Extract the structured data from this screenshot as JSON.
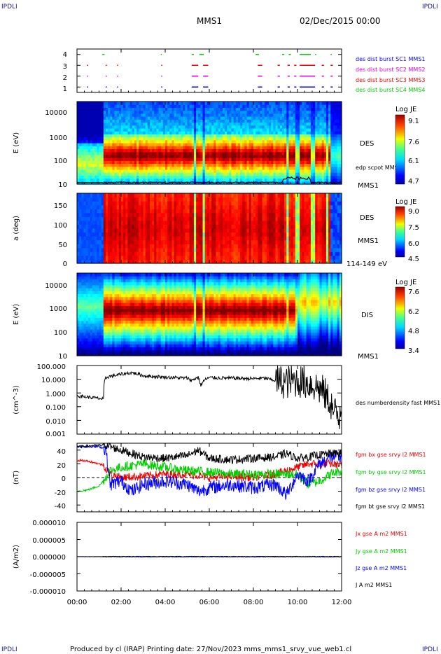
{
  "header": {
    "corner_left_top": "IPDLI",
    "corner_right_top": "IPDLI",
    "corner_left_bottom": "IPDLI",
    "corner_right_bottom": "IPDLI",
    "mission": "MMS1",
    "datetime": "02/Dec/2015 00:00"
  },
  "footer": "Produced by cl (IRAP)   Printing date: 27/Nov/2023   mms_mms1_srvy_vue_web1.cl",
  "x_axis": {
    "range": [
      0,
      12
    ],
    "tick_values": [
      0,
      2,
      4,
      6,
      8,
      10,
      12
    ],
    "tick_labels": [
      "00:00",
      "02:00",
      "04:00",
      "06:00",
      "08:00",
      "10:00",
      "12:00"
    ]
  },
  "colors": {
    "blue": "#0000ff",
    "magenta": "#dd00dd",
    "red": "#ee0000",
    "green": "#00cc00",
    "black": "#000000"
  },
  "chart_data": [
    {
      "type": "scatter",
      "id": "burst",
      "ylabel": "",
      "ylim": [
        0.5,
        4.5
      ],
      "tick_labels": [
        "1",
        "2",
        "3",
        "4"
      ],
      "series": [
        {
          "name": "des dist burst SC1 MMS1",
          "color": "#0000ff",
          "level": 1,
          "intervals": [
            [
              0.45,
              0.5
            ],
            [
              1.3,
              1.35
            ],
            [
              1.82,
              1.86
            ],
            [
              3.82,
              3.86
            ],
            [
              5.2,
              5.5
            ],
            [
              5.72,
              5.95
            ],
            [
              8.2,
              8.4
            ],
            [
              9.1,
              9.2
            ],
            [
              9.55,
              9.65
            ],
            [
              9.85,
              9.95
            ],
            [
              10.1,
              10.8
            ],
            [
              11.1,
              11.2
            ],
            [
              11.5,
              11.6
            ]
          ]
        },
        {
          "name": "des dist burst SC2 MMS2",
          "color": "#dd00dd",
          "level": 2,
          "intervals": [
            [
              0.45,
              0.5
            ],
            [
              1.3,
              1.35
            ],
            [
              1.82,
              1.86
            ],
            [
              3.82,
              3.86
            ],
            [
              5.2,
              5.5
            ],
            [
              5.72,
              5.95
            ],
            [
              8.2,
              8.4
            ],
            [
              9.1,
              9.2
            ],
            [
              9.55,
              9.65
            ],
            [
              9.85,
              9.95
            ],
            [
              10.1,
              10.8
            ],
            [
              11.1,
              11.2
            ],
            [
              11.5,
              11.6
            ]
          ]
        },
        {
          "name": "des dist burst SC3 MMS3",
          "color": "#ee0000",
          "level": 3,
          "intervals": [
            [
              0.45,
              0.5
            ],
            [
              1.3,
              1.35
            ],
            [
              1.82,
              1.86
            ],
            [
              3.82,
              3.86
            ],
            [
              5.2,
              5.5
            ],
            [
              5.72,
              5.95
            ],
            [
              8.2,
              8.4
            ],
            [
              9.1,
              9.2
            ],
            [
              9.55,
              9.65
            ],
            [
              9.85,
              9.95
            ],
            [
              10.1,
              10.8
            ],
            [
              11.1,
              11.2
            ],
            [
              11.5,
              11.6
            ]
          ]
        },
        {
          "name": "des dist burst SC4 MMS4",
          "color": "#00cc00",
          "level": 4,
          "intervals": [
            [
              1.15,
              1.25
            ],
            [
              3.8,
              3.84
            ],
            [
              5.2,
              5.3
            ],
            [
              5.55,
              5.75
            ],
            [
              8.1,
              8.25
            ],
            [
              9.3,
              9.4
            ],
            [
              9.6,
              9.7
            ],
            [
              10.1,
              10.6
            ],
            [
              10.8,
              10.85
            ],
            [
              11.5,
              11.55
            ]
          ]
        }
      ]
    },
    {
      "type": "heatmap",
      "id": "des_energy",
      "ylabel": "E (eV)",
      "yscale": "log",
      "ylim": [
        10,
        30000
      ],
      "tick_labels": [
        "10",
        "100",
        "1000",
        "10000"
      ],
      "instrument_label": "DES",
      "overlay_label": "edp scpot MMS1",
      "spacecraft_label": "MMS1",
      "colorbar": {
        "title": "Log JE",
        "range": [
          4.7,
          9.1
        ],
        "tick_labels": [
          "4.7",
          "6.1",
          "7.6",
          "9.1"
        ]
      }
    },
    {
      "type": "heatmap",
      "id": "des_pitch",
      "ylabel": "a (deg)",
      "ylim": [
        0,
        180
      ],
      "tick_labels": [
        "0",
        "50",
        "100",
        "150"
      ],
      "instrument_label": "DES",
      "spacecraft_label": "MMS1",
      "energy_band_label": "114-149 eV",
      "colorbar": {
        "title": "Log JE",
        "range": [
          4.5,
          9.0
        ],
        "tick_labels": [
          "4.5",
          "6.0",
          "7.5",
          "9.0"
        ]
      }
    },
    {
      "type": "heatmap",
      "id": "dis_energy",
      "ylabel": "E (eV)",
      "yscale": "log",
      "ylim": [
        10,
        30000
      ],
      "tick_labels": [
        "10",
        "100",
        "1000",
        "10000"
      ],
      "instrument_label": "DIS",
      "spacecraft_label": "MMS1",
      "colorbar": {
        "title": "Log JE",
        "range": [
          3.4,
          7.6
        ],
        "tick_labels": [
          "3.4",
          "4.8",
          "6.2",
          "7.6"
        ]
      }
    },
    {
      "type": "line",
      "id": "density",
      "ylabel": "(cm^-3)",
      "yscale": "log",
      "ylim": [
        0.001,
        100
      ],
      "tick_labels": [
        "0.001",
        "0.010",
        "0.100",
        "1.000",
        "10.000",
        "100.000"
      ],
      "series": [
        {
          "name": "des numberdensity fast MMS1",
          "color": "#000000",
          "x": [
            0,
            0.5,
            1.0,
            1.2,
            1.3,
            1.4,
            1.8,
            2.5,
            3.0,
            3.5,
            4.0,
            5.0,
            5.2,
            5.5,
            5.6,
            5.8,
            6.0,
            7.0,
            8.0,
            8.4,
            8.6,
            9.0,
            9.5,
            10.0,
            10.5,
            11.0,
            11.3,
            11.6,
            11.9,
            12.0
          ],
          "y": [
            0.6,
            0.5,
            0.4,
            0.35,
            12,
            15,
            20,
            30,
            18,
            16,
            14,
            12,
            8,
            14,
            3,
            9,
            13,
            12,
            11,
            12,
            11,
            8,
            6,
            8,
            5,
            2,
            0.5,
            0.05,
            0.01,
            0.2
          ]
        }
      ]
    },
    {
      "type": "line",
      "id": "fgm",
      "ylabel": "(nT)",
      "ylim": [
        -50,
        50
      ],
      "tick_labels": [
        "-40",
        "-20",
        "0",
        "20",
        "40"
      ],
      "series": [
        {
          "name": "fgm bx gse srvy l2 MMS1",
          "color": "#ee0000",
          "x": [
            0,
            0.5,
            1.0,
            1.2,
            1.5,
            2.0,
            3.0,
            4.0,
            5.0,
            5.5,
            6.0,
            7.0,
            8.0,
            9.0,
            10.0,
            10.5,
            11.0,
            11.5,
            12.0
          ],
          "y": [
            25,
            24,
            20,
            18,
            5,
            0,
            2,
            5,
            5,
            3,
            0,
            2,
            0,
            5,
            15,
            20,
            20,
            20,
            18
          ]
        },
        {
          "name": "fgm by gse srvy l2 MMS1",
          "color": "#00cc00",
          "x": [
            0,
            0.5,
            1.0,
            1.2,
            1.5,
            2.0,
            3.0,
            4.0,
            5.0,
            6.0,
            7.0,
            8.0,
            9.0,
            10.0,
            10.5,
            11.0,
            11.5,
            12.0
          ],
          "y": [
            -20,
            -18,
            -12,
            -5,
            10,
            15,
            20,
            15,
            10,
            8,
            5,
            5,
            5,
            5,
            -10,
            -5,
            5,
            10
          ]
        },
        {
          "name": "fgm bz gse srvy l2 MMS1",
          "color": "#0000ff",
          "x": [
            0,
            0.5,
            1.0,
            1.3,
            1.5,
            2.0,
            2.5,
            3.0,
            4.0,
            5.0,
            5.5,
            6.0,
            7.0,
            8.0,
            9.0,
            9.5,
            10.0,
            10.5,
            11.0,
            11.5,
            12.0
          ],
          "y": [
            45,
            45,
            45,
            42,
            -10,
            -5,
            -20,
            -10,
            -5,
            -10,
            -20,
            -15,
            -10,
            -15,
            -10,
            -25,
            5,
            -5,
            20,
            30,
            30
          ]
        },
        {
          "name": "fgm bt gse srvy l2 MMS1",
          "color": "#000000",
          "x": [
            0,
            0.5,
            1.0,
            1.3,
            1.5,
            2.0,
            2.5,
            3.0,
            4.0,
            5.0,
            5.5,
            6.0,
            7.0,
            8.0,
            9.0,
            9.5,
            10.0,
            10.5,
            11.0,
            11.5,
            12.0
          ],
          "y": [
            45,
            46,
            47,
            48,
            45,
            40,
            35,
            30,
            28,
            32,
            40,
            28,
            26,
            28,
            30,
            35,
            28,
            30,
            33,
            35,
            35
          ]
        }
      ]
    },
    {
      "type": "line",
      "id": "current",
      "ylabel": "(A/m2)",
      "ylim": [
        -1e-05,
        1e-05
      ],
      "tick_labels": [
        "-0.000010",
        "-0.000005",
        "0.000000",
        "0.000005",
        "0.000010"
      ],
      "series": [
        {
          "name": "Jx gse A m2 MMS1",
          "color": "#ee0000",
          "x": [
            0,
            12
          ],
          "y": [
            0,
            0
          ]
        },
        {
          "name": "Jy gse A m2 MMS1",
          "color": "#00cc00",
          "x": [
            0,
            12
          ],
          "y": [
            0,
            0
          ]
        },
        {
          "name": "Jz gse A m2 MMS1",
          "color": "#0000ff",
          "x": [
            0,
            12
          ],
          "y": [
            0,
            0
          ]
        },
        {
          "name": "J A m2 MMS1",
          "color": "#000000",
          "x": [
            0,
            12
          ],
          "y": [
            0,
            0
          ]
        }
      ]
    }
  ]
}
